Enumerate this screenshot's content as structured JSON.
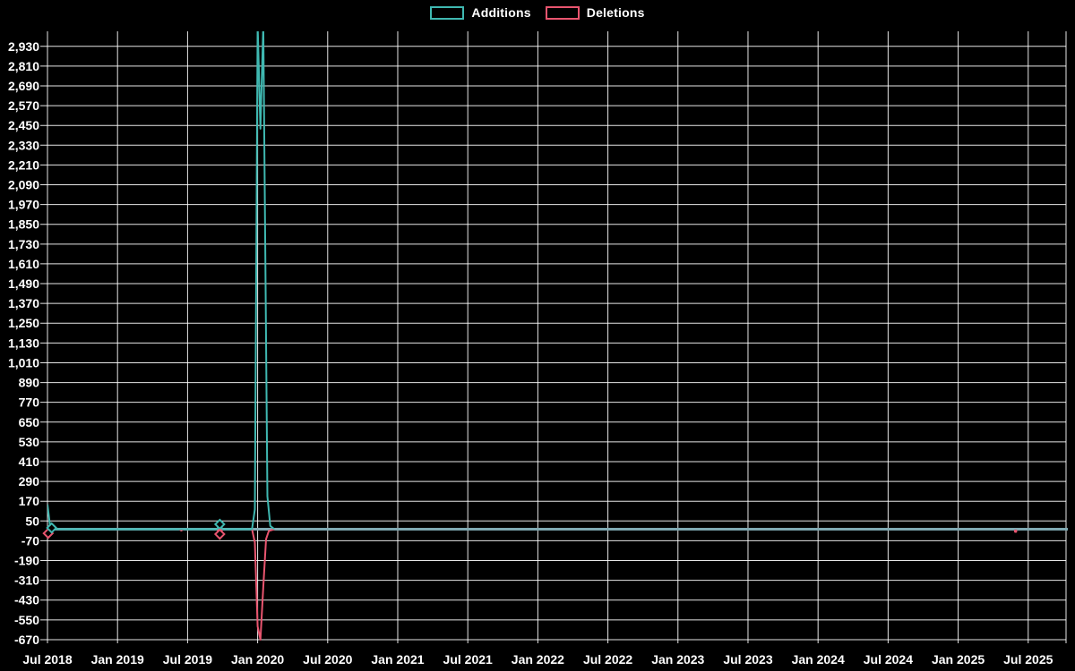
{
  "page": {
    "background": "#000000",
    "text_color": "#ffffff"
  },
  "legend": {
    "items": [
      {
        "label": "Additions",
        "color": "#3fb8b1"
      },
      {
        "label": "Deletions",
        "color": "#e9556f"
      }
    ]
  },
  "chart_data": {
    "type": "line",
    "title": "",
    "xlabel": "",
    "ylabel": "",
    "grid": true,
    "grid_color": "#ffffff",
    "text_color": "#ffffff",
    "legend_position": "top-center",
    "x_axis": {
      "tick_labels": [
        "Jul 2018",
        "Jan 2019",
        "Jul 2019",
        "Jan 2020",
        "Jul 2020",
        "Jan 2021",
        "Jul 2021",
        "Jan 2022",
        "Jul 2022",
        "Jan 2023",
        "Jul 2023",
        "Jan 2024",
        "Jul 2024",
        "Jan 2025",
        "Jul 2025"
      ],
      "tick_positions": [
        2018.5,
        2019.0,
        2019.5,
        2020.0,
        2020.5,
        2021.0,
        2021.5,
        2022.0,
        2022.5,
        2023.0,
        2023.5,
        2024.0,
        2024.5,
        2025.0,
        2025.5
      ],
      "domain": [
        2018.5,
        2025.77
      ]
    },
    "y_axis": {
      "ticks": [
        2930,
        2810,
        2690,
        2570,
        2450,
        2330,
        2210,
        2090,
        1970,
        1850,
        1730,
        1610,
        1490,
        1370,
        1250,
        1130,
        1010,
        890,
        770,
        650,
        530,
        410,
        290,
        170,
        50,
        -70,
        -190,
        -310,
        -430,
        -550,
        -670
      ],
      "domain": [
        -692,
        3021
      ]
    },
    "zero_line": {
      "value": 0,
      "color": "#7fa9b2"
    },
    "series": [
      {
        "name": "Deletions",
        "color": "#e9556f",
        "points": [
          [
            2018.5,
            -25
          ],
          [
            2018.525,
            -5
          ],
          [
            2018.55,
            0
          ],
          [
            2019.44,
            0
          ],
          [
            2019.455,
            -8
          ],
          [
            2019.47,
            0
          ],
          [
            2019.71,
            0
          ],
          [
            2019.73,
            -30
          ],
          [
            2019.75,
            0
          ],
          [
            2019.96,
            0
          ],
          [
            2019.98,
            -80
          ],
          [
            2020.0,
            -590
          ],
          [
            2020.02,
            -670
          ],
          [
            2020.04,
            -350
          ],
          [
            2020.06,
            -60
          ],
          [
            2020.08,
            -10
          ],
          [
            2020.12,
            0
          ]
        ]
      },
      {
        "name": "Additions",
        "color": "#3fb8b1",
        "points": [
          [
            2018.5,
            150
          ],
          [
            2018.52,
            10
          ],
          [
            2018.545,
            0
          ],
          [
            2019.71,
            0
          ],
          [
            2019.73,
            30
          ],
          [
            2019.75,
            0
          ],
          [
            2019.96,
            0
          ],
          [
            2019.98,
            120
          ],
          [
            2020.0,
            3060
          ],
          [
            2020.02,
            2430
          ],
          [
            2020.04,
            3060
          ],
          [
            2020.055,
            1650
          ],
          [
            2020.07,
            200
          ],
          [
            2020.09,
            20
          ],
          [
            2020.12,
            0
          ]
        ]
      }
    ],
    "markers": [
      {
        "series": "Deletions",
        "t": 2018.505,
        "v": -25,
        "shape": "diamond",
        "color": "#e9556f"
      },
      {
        "series": "Additions",
        "t": 2018.53,
        "v": 8,
        "shape": "diamond",
        "color": "#3fb8b1"
      },
      {
        "series": "Additions",
        "t": 2019.73,
        "v": 30,
        "shape": "diamond",
        "color": "#3fb8b1"
      },
      {
        "series": "Deletions",
        "t": 2019.73,
        "v": -30,
        "shape": "diamond",
        "color": "#e9556f"
      },
      {
        "series": "Deletions",
        "t": 2025.41,
        "v": -12,
        "shape": "dot",
        "color": "#e9556f"
      }
    ]
  }
}
